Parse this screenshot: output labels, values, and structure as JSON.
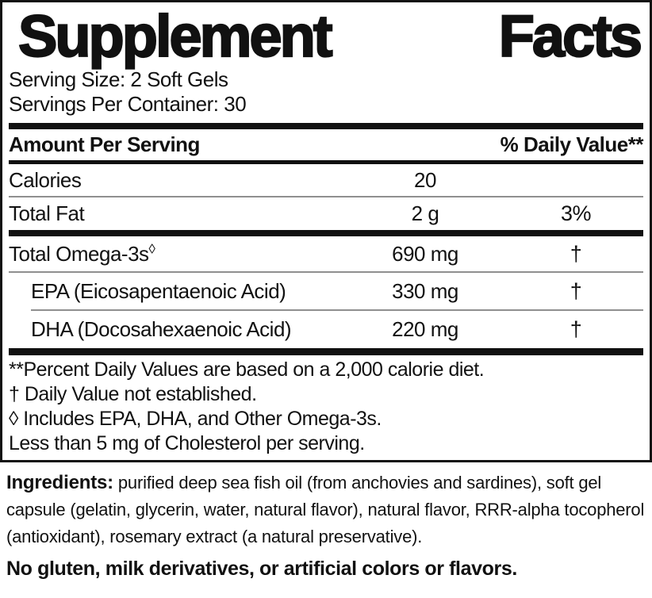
{
  "label": {
    "title": {
      "word1": "Supplement",
      "word2": "Facts"
    },
    "serving_size": "Serving Size: 2 Soft Gels",
    "servings_per_container": "Servings Per Container: 30",
    "header": {
      "amount_per_serving": "Amount Per Serving",
      "daily_value": "% Daily Value**"
    },
    "rows": [
      {
        "name": "Calories",
        "amount": "20",
        "dv": ""
      },
      {
        "name": "Total Fat",
        "amount": "2 g",
        "dv": "3%"
      },
      {
        "name": "Total Omega-3s",
        "name_sup": "◊",
        "amount": "690 mg",
        "dv": "†"
      },
      {
        "name": "EPA (Eicosapentaenoic Acid)",
        "amount": "330 mg",
        "dv": "†"
      },
      {
        "name": "DHA (Docosahexaenoic Acid)",
        "amount": "220 mg",
        "dv": "†"
      }
    ],
    "footnotes": [
      "**Percent Daily Values are based on a 2,000 calorie diet.",
      "† Daily Value not established.",
      "◊ Includes EPA, DHA, and Other Omega-3s.",
      "Less than 5 mg of Cholesterol per serving."
    ]
  },
  "ingredients": {
    "label": "Ingredients:",
    "text": "purified deep sea fish oil (from anchovies and sardines), soft gel capsule (gelatin, glycerin, water, natural flavor), natural flavor, RRR-alpha tocopherol (antioxidant), rosemary extract (a natural preservative)."
  },
  "allergen_statement": "No gluten, milk derivatives, or artificial colors or flavors.",
  "colors": {
    "text": "#111111",
    "background": "#ffffff",
    "thick_bar": "#111111",
    "thin_divider": "#8f8f8f"
  }
}
